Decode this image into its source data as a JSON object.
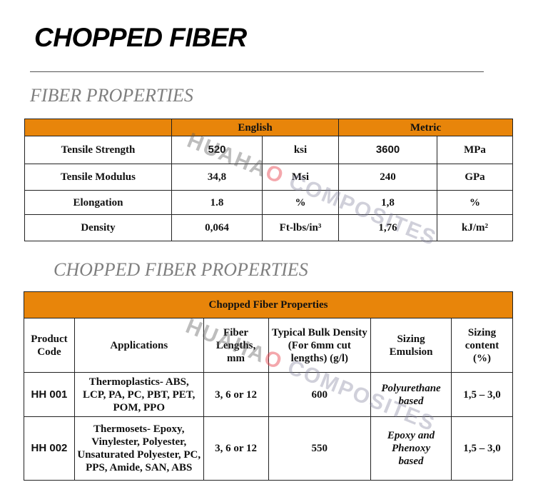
{
  "title": "CHOPPED FIBER",
  "section1": "FIBER PROPERTIES",
  "section2": "CHOPPED FIBER PROPERTIES",
  "watermark": {
    "main": "HUAHA",
    "o": "O",
    "sub": "COMPOSITES"
  },
  "colors": {
    "header": "#e8850a"
  },
  "fiber_table": {
    "headers": [
      "English",
      "Metric"
    ],
    "rows": [
      {
        "property": "Tensile Strength",
        "eng_value": "520",
        "eng_unit": "ksi",
        "met_value": "3600",
        "met_unit": "MPa"
      },
      {
        "property": "Tensile Modulus",
        "eng_value": "34,8",
        "eng_unit": "Msi",
        "met_value": "240",
        "met_unit": "GPa"
      },
      {
        "property": "Elongation",
        "eng_value": "1.8",
        "eng_unit": "%",
        "met_value": "1,8",
        "met_unit": "%"
      },
      {
        "property": "Density",
        "eng_value": "0,064",
        "eng_unit": "Ft-lbs/in³",
        "met_value": "1,76",
        "met_unit": "kJ/m²"
      }
    ]
  },
  "chopped_table": {
    "caption": "Chopped Fiber Properties",
    "columns": [
      "Product Code",
      "Applications",
      "Fiber Lengths, mm",
      "Typical Bulk Density (For 6mm cut lengths) (g/l)",
      "Sizing Emulsion",
      "Sizing content (%)"
    ],
    "rows": [
      {
        "code": "HH 001",
        "applications": "Thermoplastics- ABS, LCP, PA, PC, PBT, PET, POM, PPO",
        "lengths": "3, 6 or 12",
        "density": "600",
        "emulsion": "Polyurethane based",
        "content": "1,5 – 3,0"
      },
      {
        "code": "HH 002",
        "applications": "Thermosets- Epoxy, Vinylester, Polyester, Unsaturated Polyester, PC, PPS, Amide, SAN, ABS",
        "lengths": "3, 6 or 12",
        "density": "550",
        "emulsion": "Epoxy and Phenoxy based",
        "content": "1,5 – 3,0"
      }
    ]
  }
}
